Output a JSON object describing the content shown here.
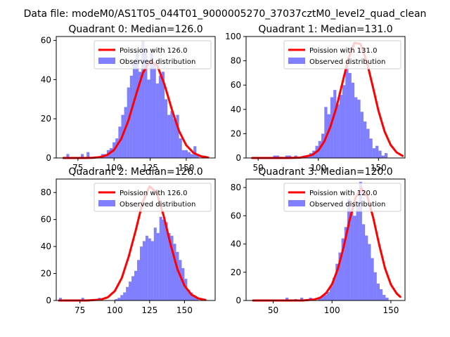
{
  "suptitle": "Data file: modeM0/AS1T05_044T01_9000005270_37037cztM0_level2_quad_clean",
  "chart_data": [
    {
      "type": "bar",
      "title": "Quadrant 0: Median=126.0",
      "xlim": [
        60,
        170
      ],
      "ylim": [
        0,
        62
      ],
      "xticks": [
        75,
        100,
        125,
        150
      ],
      "yticks": [
        0,
        20,
        40,
        60
      ],
      "legend": {
        "location": "top-right",
        "fit_label": "Poission with 126.0",
        "hist_label": "Observed distribution"
      },
      "histogram": {
        "bin_start": 65,
        "bin_width": 2,
        "counts": [
          0,
          2,
          0,
          0,
          0,
          0,
          2,
          0,
          3,
          0,
          0,
          0,
          1,
          2,
          2,
          4,
          5,
          8,
          10,
          16,
          22,
          26,
          36,
          42,
          50,
          54,
          44,
          60,
          56,
          40,
          54,
          48,
          38,
          42,
          44,
          30,
          22,
          24,
          20,
          22,
          10,
          4,
          4,
          3,
          2,
          6,
          2,
          0
        ]
      },
      "poisson": {
        "mean": 126.0,
        "x": [
          65,
          70,
          75,
          80,
          85,
          90,
          95,
          100,
          105,
          110,
          115,
          120,
          125,
          130,
          135,
          140,
          145,
          150,
          155,
          160,
          165
        ],
        "y": [
          0,
          0,
          0,
          0,
          0.1,
          0.4,
          1.4,
          4.1,
          9.8,
          19.2,
          31.7,
          43.5,
          49.5,
          47.1,
          37.3,
          24.8,
          13.8,
          6.5,
          2.6,
          0.9,
          0.3
        ]
      }
    },
    {
      "type": "bar",
      "title": "Quadrant 1: Median=131.0",
      "xlim": [
        40,
        172
      ],
      "ylim": [
        0,
        100
      ],
      "xticks": [
        50,
        100,
        150
      ],
      "yticks": [
        0,
        20,
        40,
        60,
        80,
        100
      ],
      "legend": {
        "location": "top-right",
        "fit_label": "Poission with 131.0",
        "hist_label": "Observed distribution"
      },
      "histogram": {
        "bin_start": 45,
        "bin_width": 2.5,
        "counts": [
          0,
          0,
          0,
          0,
          0,
          0,
          0,
          2,
          2,
          1,
          0,
          2,
          2,
          0,
          2,
          1,
          0,
          2,
          2,
          4,
          6,
          10,
          14,
          20,
          42,
          36,
          50,
          56,
          44,
          52,
          60,
          76,
          70,
          62,
          50,
          48,
          38,
          30,
          24,
          16,
          8,
          10,
          6,
          2,
          4,
          0,
          0,
          0,
          0,
          0,
          0
        ]
      },
      "poisson": {
        "mean": 131.0,
        "x": [
          45,
          55,
          65,
          75,
          85,
          95,
          100,
          105,
          110,
          115,
          120,
          125,
          130,
          135,
          140,
          145,
          150,
          155,
          160,
          165,
          170
        ],
        "y": [
          0,
          0,
          0,
          0,
          0.3,
          2.5,
          6.2,
          13.7,
          25.5,
          41.5,
          61.8,
          81.8,
          94.8,
          93.9,
          80.3,
          59.8,
          38.8,
          21.9,
          10.8,
          4.6,
          1.7
        ]
      }
    },
    {
      "type": "bar",
      "title": "Quadrant 2: Median=126.0",
      "xlim": [
        58,
        172
      ],
      "ylim": [
        0,
        90
      ],
      "xticks": [
        75,
        100,
        125,
        150
      ],
      "yticks": [
        0,
        20,
        40,
        60,
        80
      ],
      "legend": {
        "location": "top-right",
        "fit_label": "Poission with 126.0",
        "hist_label": "Observed distribution"
      },
      "histogram": {
        "bin_start": 60,
        "bin_width": 2,
        "counts": [
          2,
          0,
          0,
          0,
          0,
          0,
          0,
          0,
          2,
          0,
          0,
          0,
          0,
          0,
          2,
          0,
          0,
          0,
          0,
          0,
          1,
          2,
          4,
          6,
          10,
          14,
          18,
          22,
          30,
          40,
          44,
          48,
          46,
          44,
          54,
          50,
          62,
          60,
          58,
          50,
          48,
          42,
          36,
          30,
          24,
          16,
          8,
          6,
          4,
          2,
          0,
          0,
          0
        ]
      },
      "poisson": {
        "mean": 126.0,
        "x": [
          60,
          70,
          80,
          90,
          95,
          100,
          105,
          110,
          115,
          120,
          125,
          130,
          135,
          140,
          145,
          150,
          155,
          160,
          165
        ],
        "y": [
          0,
          0,
          0,
          0.7,
          2.4,
          7.0,
          16.7,
          32.6,
          51.8,
          72.9,
          84.6,
          80.0,
          63.1,
          41.5,
          23.0,
          10.9,
          4.3,
          1.5,
          0.4
        ]
      }
    },
    {
      "type": "bar",
      "title": "Quadrant 3: Median=120.0",
      "xlim": [
        27,
        162
      ],
      "ylim": [
        0,
        86
      ],
      "xticks": [
        50,
        100,
        150
      ],
      "yticks": [
        0,
        20,
        40,
        60,
        80
      ],
      "legend": {
        "location": "top-right",
        "fit_label": "Poission with 120.0",
        "hist_label": "Observed distribution"
      },
      "histogram": {
        "bin_start": 33,
        "bin_width": 2.5,
        "counts": [
          0,
          0,
          0,
          0,
          0,
          0,
          0,
          0,
          0,
          0,
          0,
          2,
          0,
          0,
          1,
          0,
          2,
          0,
          0,
          2,
          0,
          0,
          2,
          3,
          4,
          6,
          10,
          16,
          26,
          34,
          44,
          52,
          72,
          64,
          60,
          70,
          84,
          54,
          46,
          40,
          30,
          20,
          12,
          8,
          4,
          2,
          0,
          0,
          0
        ]
      },
      "poisson": {
        "mean": 120.0,
        "x": [
          33,
          45,
          55,
          65,
          75,
          85,
          90,
          95,
          100,
          105,
          110,
          115,
          120,
          125,
          130,
          135,
          140,
          145,
          150,
          155,
          158
        ],
        "y": [
          0,
          0,
          0,
          0,
          0,
          0.7,
          2.0,
          5.3,
          11.5,
          22.5,
          38.2,
          57.1,
          73.0,
          79.4,
          73.9,
          58.6,
          39.7,
          22.9,
          11.3,
          4.8,
          2.6
        ]
      }
    }
  ]
}
